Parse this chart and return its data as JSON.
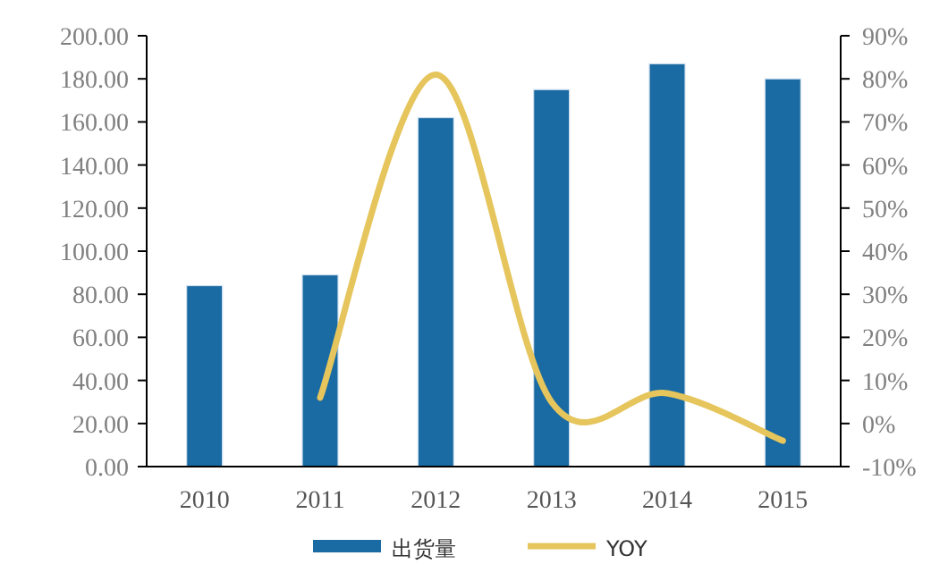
{
  "chart_data": {
    "type": "bar",
    "categories": [
      "2010",
      "2011",
      "2012",
      "2013",
      "2014",
      "2015"
    ],
    "series": [
      {
        "name": "出货量",
        "color": "#1a6aa3",
        "values": [
          84,
          89,
          162,
          175,
          187,
          180
        ]
      },
      {
        "name": "YOY",
        "type": "line",
        "axis": "y2",
        "color": "#e5c55c",
        "values": [
          null,
          6,
          81,
          5,
          7,
          -4
        ]
      }
    ],
    "ylim": [
      0,
      200
    ],
    "yticks": [
      {
        "value": 0,
        "label": "0.00"
      },
      {
        "value": 20,
        "label": "20.00"
      },
      {
        "value": 40,
        "label": "40.00"
      },
      {
        "value": 60,
        "label": "60.00"
      },
      {
        "value": 80,
        "label": "80.00"
      },
      {
        "value": 100,
        "label": "100.00"
      },
      {
        "value": 120,
        "label": "120.00"
      },
      {
        "value": 140,
        "label": "140.00"
      },
      {
        "value": 160,
        "label": "160.00"
      },
      {
        "value": 180,
        "label": "180.00"
      },
      {
        "value": 200,
        "label": "200.00"
      }
    ],
    "y2lim": [
      -10,
      90
    ],
    "y2ticks": [
      {
        "value": -10,
        "label": "-10%"
      },
      {
        "value": 0,
        "label": "0%"
      },
      {
        "value": 10,
        "label": "10%"
      },
      {
        "value": 20,
        "label": "20%"
      },
      {
        "value": 30,
        "label": "30%"
      },
      {
        "value": 40,
        "label": "40%"
      },
      {
        "value": 50,
        "label": "50%"
      },
      {
        "value": 60,
        "label": "60%"
      },
      {
        "value": 70,
        "label": "70%"
      },
      {
        "value": 80,
        "label": "80%"
      },
      {
        "value": 90,
        "label": "90%"
      }
    ],
    "grid": false,
    "legend": "bottom",
    "marker": "none",
    "line_style": "solid"
  }
}
